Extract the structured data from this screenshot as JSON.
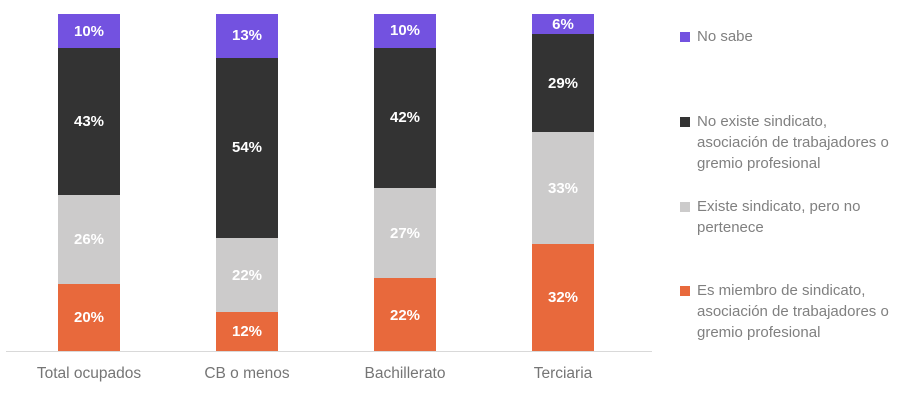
{
  "chart_data": {
    "type": "bar",
    "stacked": true,
    "title": "",
    "xlabel": "",
    "ylabel": "",
    "ylim": [
      0,
      100
    ],
    "grid": false,
    "legend_position": "right",
    "value_suffix": "%",
    "categories": [
      "Total ocupados",
      "CB o menos",
      "Bachillerato",
      "Terciaria"
    ],
    "series": [
      {
        "name": "Es miembro de sindicato, asociación de trabajadores o gremio profesional",
        "color": "#E8693C",
        "values": [
          20,
          12,
          22,
          32
        ]
      },
      {
        "name": "Existe sindicato, pero no pertenece",
        "color": "#CCCBCB",
        "values": [
          26,
          22,
          27,
          33
        ]
      },
      {
        "name": "No existe sindicato, asociación de trabajadores o gremio profesional",
        "color": "#333333",
        "values": [
          43,
          54,
          42,
          29
        ]
      },
      {
        "name": "No sabe",
        "color": "#7352E0",
        "values": [
          10,
          13,
          10,
          6
        ]
      }
    ]
  },
  "legend": {
    "items": [
      {
        "label": "No sabe",
        "color": "#7352E0"
      },
      {
        "label": "No existe sindicato,\nasociación de trabajadores o\ngremio profesional",
        "color": "#333333"
      },
      {
        "label": "Existe sindicato, pero no\npertenece",
        "color": "#CCCBCB"
      },
      {
        "label": "Es miembro de sindicato,\nasociación de trabajadores o\ngremio profesional",
        "color": "#E8693C"
      }
    ]
  }
}
